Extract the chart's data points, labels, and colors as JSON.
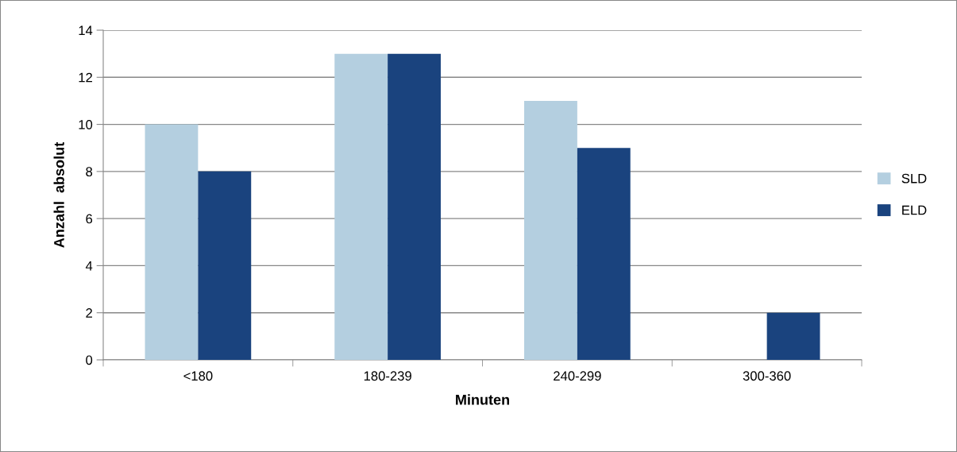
{
  "chart_data": {
    "type": "bar",
    "xlabel": "Minuten",
    "ylabel": "Anzahl  absolut",
    "categories": [
      "<180",
      "180-239",
      "240-299",
      "300-360"
    ],
    "series": [
      {
        "name": "SLD",
        "color": "#b4cfe0",
        "values": [
          10,
          13,
          11,
          0
        ]
      },
      {
        "name": "ELD",
        "color": "#1a437e",
        "values": [
          8,
          13,
          9,
          2
        ]
      }
    ],
    "ylim": [
      0,
      14
    ],
    "yticks": [
      0,
      2,
      4,
      6,
      8,
      10,
      12,
      14
    ],
    "grid": "y",
    "legend": "right"
  }
}
